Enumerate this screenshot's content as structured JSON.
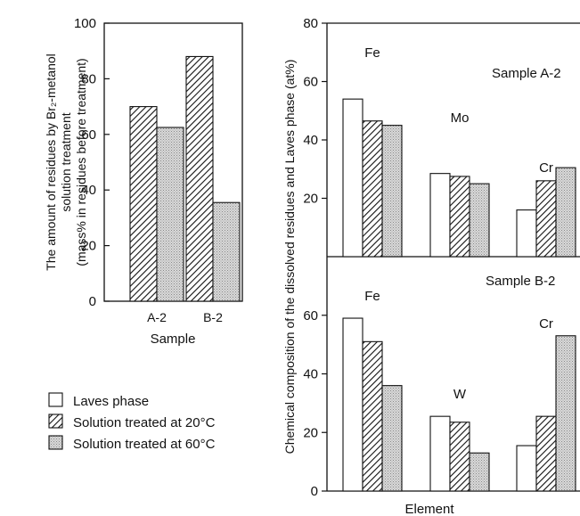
{
  "legend": {
    "items": [
      {
        "key": "laves",
        "label": "Laves phase"
      },
      {
        "key": "sol20",
        "label": "Solution treated at 20°C"
      },
      {
        "key": "sol60",
        "label": "Solution treated at 60°C"
      }
    ]
  },
  "chart_data": [
    {
      "type": "bar",
      "categories": [
        "A-2",
        "B-2"
      ],
      "series": [
        {
          "name": "Solution treated at 20°C",
          "values": [
            70,
            88
          ]
        },
        {
          "name": "Solution treated at 60°C",
          "values": [
            62.5,
            35.5
          ]
        }
      ],
      "xlabel": "Sample",
      "ylabel": [
        "The amount of  residues by Br₂-metanol",
        "solution treatment",
        "(mass% in residues before treatment)"
      ],
      "ylim": [
        0,
        100
      ],
      "yticks": [
        0,
        20,
        40,
        60,
        80,
        100
      ]
    },
    {
      "type": "bar",
      "annotation": "Sample A-2",
      "groups": [
        {
          "element": "Fe",
          "values": [
            54,
            46.5,
            45
          ]
        },
        {
          "element": "Mo",
          "values": [
            28.5,
            27.5,
            25
          ]
        },
        {
          "element": "Cr",
          "values": [
            16,
            26,
            30.5
          ]
        }
      ],
      "series_order": [
        "Laves phase",
        "Solution treated at 20°C",
        "Solution treated at 60°C"
      ],
      "ylim": [
        0,
        80
      ],
      "yticks": [
        20,
        40,
        60,
        80
      ]
    },
    {
      "type": "bar",
      "annotation": "Sample B-2",
      "groups": [
        {
          "element": "Fe",
          "values": [
            59,
            51,
            36
          ]
        },
        {
          "element": "W",
          "values": [
            25.5,
            23.5,
            13
          ]
        },
        {
          "element": "Cr",
          "values": [
            15.5,
            25.5,
            53
          ]
        }
      ],
      "series_order": [
        "Laves phase",
        "Solution treated at 20°C",
        "Solution treated at 60°C"
      ],
      "ylim": [
        0,
        80
      ],
      "yticks": [
        0,
        20,
        40,
        60
      ]
    }
  ],
  "shared_axes": {
    "right_ylabel": "Chemical composition of the dissolved residues and Laves phase (at%)",
    "right_xlabel": "Element"
  }
}
